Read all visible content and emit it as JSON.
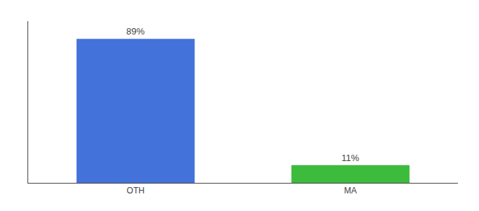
{
  "chart_data": {
    "type": "bar",
    "categories": [
      "OTH",
      "MA"
    ],
    "values": [
      89,
      11
    ],
    "value_labels": [
      "89%",
      "11%"
    ],
    "colors": [
      "#4472db",
      "#3dbb3d"
    ],
    "ylim": [
      0,
      100
    ],
    "data_labels": true,
    "tick_labels": "x",
    "grid": false
  }
}
